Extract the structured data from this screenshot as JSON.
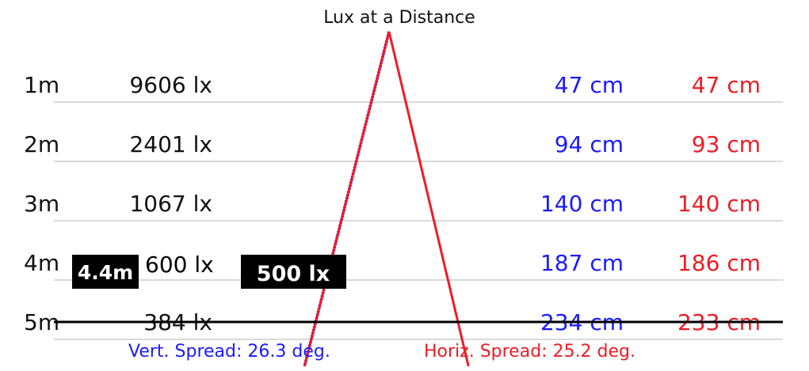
{
  "chart_data": {
    "type": "table",
    "title": "Lux at a Distance",
    "rows": [
      {
        "distance": "1m",
        "lux": "9606 lx",
        "vert_width": "47 cm",
        "horiz_width": "47 cm"
      },
      {
        "distance": "2m",
        "lux": "2401 lx",
        "vert_width": "94 cm",
        "horiz_width": "93 cm"
      },
      {
        "distance": "3m",
        "lux": "1067 lx",
        "vert_width": "140 cm",
        "horiz_width": "140 cm"
      },
      {
        "distance": "4m",
        "lux": "600 lx",
        "vert_width": "187 cm",
        "horiz_width": "186 cm"
      },
      {
        "distance": "5m",
        "lux": "384 lx",
        "vert_width": "234 cm",
        "horiz_width": "233 cm"
      }
    ],
    "threshold": {
      "distance_label": "4.4m",
      "lux_label": "500 lx",
      "distance_m": 4.4
    },
    "vert_spread_label": "Vert. Spread: 26.3 deg.",
    "horiz_spread_label": "Horiz. Spread: 25.2 deg.",
    "vert_spread_deg": 26.3,
    "horiz_spread_deg": 25.2,
    "colors": {
      "vertical": "#1a1aff",
      "horizontal": "#ee1c25",
      "text": "#111111",
      "grid": "#b4b4b4",
      "threshold": "#000000"
    }
  }
}
